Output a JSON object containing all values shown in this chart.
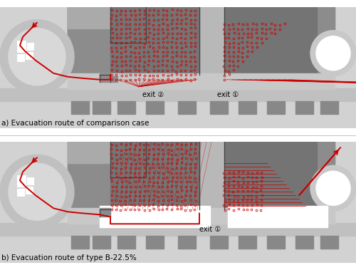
{
  "bg_outer": "#e8e8e8",
  "bg_light": "#d0d0d0",
  "gray_med": "#b0b0b0",
  "gray_dark": "#808080",
  "gray_darker": "#606060",
  "gray_building": "#909090",
  "white": "#ffffff",
  "black": "#000000",
  "red": "#cc0000",
  "red_light": "#dd4444",
  "label_a": "a) Evacuation route of comparison case",
  "label_b": "b) Evacuation route of type B-22.5%",
  "exit1": "exit ①",
  "exit2": "exit ②"
}
